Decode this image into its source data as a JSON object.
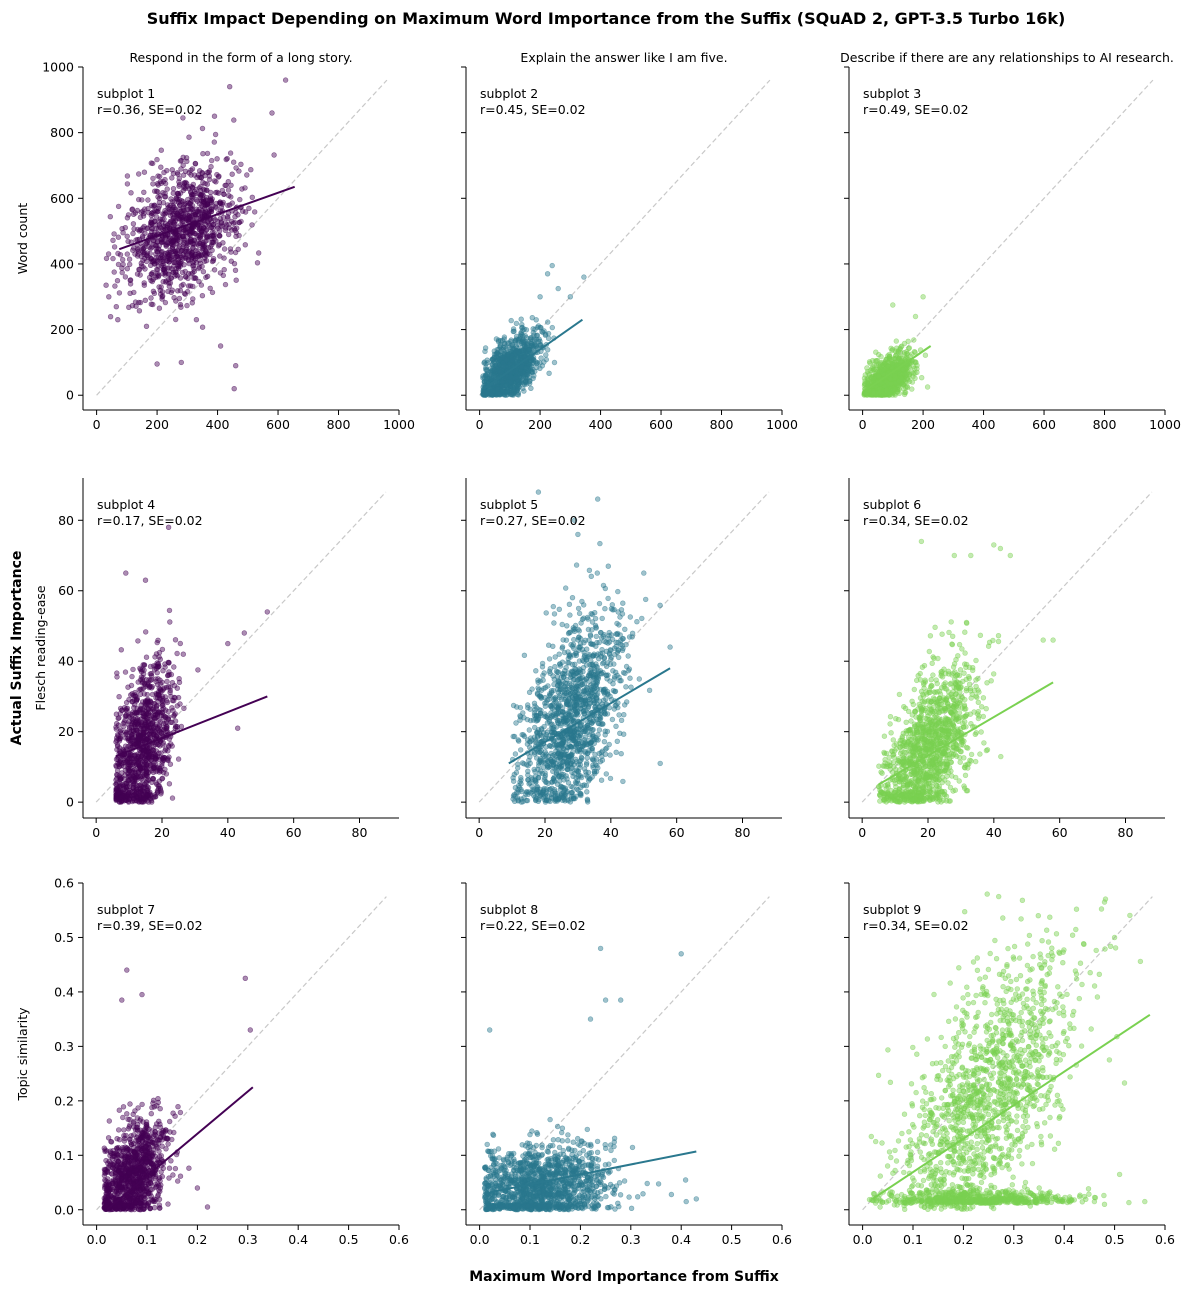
{
  "figure": {
    "title": "Suffix Impact Depending on Maximum Word Importance from the Suffix (SQuAD 2, GPT-3.5 Turbo 16k)",
    "xlabel": "Maximum Word Importance from Suffix",
    "ylabel": "Actual Suffix Importance"
  },
  "colors": {
    "c1": "#440154",
    "c2": "#2a788e",
    "c3": "#7ad151",
    "diag": "#c8c8c8",
    "axis": "#000000"
  },
  "chart_data": [
    {
      "type": "scatter",
      "title": "Respond in the form of a long story.",
      "ylabel": "Word count",
      "label": "subplot 1",
      "stat": "r=0.36, SE=0.02",
      "xlim": [
        -45,
        1000
      ],
      "ylim": [
        -45,
        1000
      ],
      "xticks": [
        0,
        200,
        400,
        600,
        800,
        1000
      ],
      "xtick_labels": [
        "0",
        "200",
        "400",
        "600",
        "800",
        "1000"
      ],
      "yticks": [
        0,
        200,
        400,
        600,
        800,
        1000
      ],
      "ytick_labels": [
        "0",
        "200",
        "400",
        "600",
        "800",
        "1000"
      ],
      "diag": [
        0,
        960
      ],
      "fit": [
        [
          75,
          445
        ],
        [
          655,
          635
        ]
      ],
      "cloud": {
        "n": 1100,
        "mx": 285,
        "sx": 95,
        "my": 500,
        "sy": 100,
        "slope": 0.33,
        "ymin": 20,
        "xmin": 30
      },
      "outliers": [
        [
          625,
          960
        ],
        [
          440,
          940
        ],
        [
          390,
          850
        ],
        [
          580,
          860
        ],
        [
          200,
          95
        ],
        [
          280,
          100
        ],
        [
          460,
          90
        ],
        [
          455,
          20
        ],
        [
          330,
          230
        ],
        [
          410,
          150
        ],
        [
          165,
          210
        ],
        [
          70,
          230
        ]
      ],
      "series_color": "c1"
    },
    {
      "type": "scatter",
      "title": "Explain the answer like I am five.",
      "ylabel": "",
      "label": "subplot 2",
      "stat": "r=0.45, SE=0.02",
      "xlim": [
        -45,
        1000
      ],
      "ylim": [
        -45,
        1000
      ],
      "xticks": [
        0,
        200,
        400,
        600,
        800,
        1000
      ],
      "xtick_labels": [
        "0",
        "200",
        "400",
        "600",
        "800",
        "1000"
      ],
      "yticks": [
        0,
        200,
        400,
        600,
        800,
        1000
      ],
      "ytick_labels": [
        "0",
        "200",
        "400",
        "600",
        "800",
        "1000"
      ],
      "diag": [
        0,
        960
      ],
      "fit": [
        [
          15,
          20
        ],
        [
          340,
          230
        ]
      ],
      "cloud": {
        "n": 1100,
        "mx": 100,
        "sx": 50,
        "my": 75,
        "sy": 55,
        "slope": 0.55,
        "ymin": 0,
        "xmin": 10
      },
      "outliers": [
        [
          345,
          360
        ],
        [
          240,
          395
        ],
        [
          225,
          370
        ],
        [
          260,
          325
        ],
        [
          300,
          300
        ],
        [
          200,
          300
        ]
      ],
      "series_color": "c2"
    },
    {
      "type": "scatter",
      "title": "Describe if there are any relationships to AI research.",
      "ylabel": "",
      "label": "subplot 3",
      "stat": "r=0.49, SE=0.02",
      "xlim": [
        -45,
        1000
      ],
      "ylim": [
        -45,
        1000
      ],
      "xticks": [
        0,
        200,
        400,
        600,
        800,
        1000
      ],
      "xtick_labels": [
        "0",
        "200",
        "400",
        "600",
        "800",
        "1000"
      ],
      "yticks": [
        0,
        200,
        400,
        600,
        800,
        1000
      ],
      "ytick_labels": [
        "0",
        "200",
        "400",
        "600",
        "800",
        "1000"
      ],
      "diag": [
        0,
        960
      ],
      "fit": [
        [
          10,
          15
        ],
        [
          225,
          150
        ]
      ],
      "cloud": {
        "n": 1000,
        "mx": 80,
        "sx": 40,
        "my": 45,
        "sy": 40,
        "slope": 0.55,
        "ymin": 0,
        "xmin": 5
      },
      "outliers": [
        [
          200,
          300
        ],
        [
          100,
          275
        ],
        [
          175,
          240
        ],
        [
          215,
          25
        ]
      ],
      "series_color": "c3"
    },
    {
      "type": "scatter",
      "title": "",
      "ylabel": "Flesch reading-ease",
      "label": "subplot 4",
      "stat": "r=0.17, SE=0.02",
      "xlim": [
        -4,
        92
      ],
      "ylim": [
        -4.5,
        92
      ],
      "xticks": [
        0,
        20,
        40,
        60,
        80
      ],
      "xtick_labels": [
        "0",
        "20",
        "40",
        "60",
        "80"
      ],
      "yticks": [
        0,
        20,
        40,
        60,
        80
      ],
      "ytick_labels": [
        "0",
        "20",
        "40",
        "60",
        "80"
      ],
      "diag": [
        0,
        88
      ],
      "fit": [
        [
          6,
          13
        ],
        [
          52,
          30
        ]
      ],
      "cloud": {
        "n": 1100,
        "mx": 14,
        "sx": 5,
        "my": 16,
        "sy": 12,
        "slope": 0.4,
        "ymin": 0,
        "xmin": 6
      },
      "outliers": [
        [
          52,
          54
        ],
        [
          22,
          78
        ],
        [
          45,
          48
        ],
        [
          40,
          45
        ],
        [
          43,
          21
        ],
        [
          9,
          65
        ],
        [
          15,
          63
        ]
      ],
      "series_color": "c1"
    },
    {
      "type": "scatter",
      "title": "",
      "ylabel": "",
      "label": "subplot 5",
      "stat": "r=0.27, SE=0.02",
      "xlim": [
        -4,
        92
      ],
      "ylim": [
        -4.5,
        92
      ],
      "xticks": [
        0,
        20,
        40,
        60,
        80
      ],
      "xtick_labels": [
        "0",
        "20",
        "40",
        "60",
        "80"
      ],
      "yticks": [
        0,
        20,
        40,
        60,
        80
      ],
      "ytick_labels": [
        "0",
        "20",
        "40",
        "60",
        "80"
      ],
      "diag": [
        0,
        88
      ],
      "fit": [
        [
          9,
          11
        ],
        [
          58,
          38
        ]
      ],
      "cloud": {
        "n": 1400,
        "mx": 28,
        "sx": 8,
        "my": 23,
        "sy": 15,
        "slope": 0.5,
        "ymin": 0,
        "xmin": 10
      },
      "outliers": [
        [
          18,
          88
        ],
        [
          36,
          86
        ],
        [
          29,
          80
        ],
        [
          30,
          76
        ],
        [
          58,
          44
        ],
        [
          55,
          11
        ],
        [
          50,
          65
        ]
      ],
      "series_color": "c2"
    },
    {
      "type": "scatter",
      "title": "",
      "ylabel": "",
      "label": "subplot 6",
      "stat": "r=0.34, SE=0.02",
      "xlim": [
        -4,
        92
      ],
      "ylim": [
        -4.5,
        92
      ],
      "xticks": [
        0,
        20,
        40,
        60,
        80
      ],
      "xtick_labels": [
        "0",
        "20",
        "40",
        "60",
        "80"
      ],
      "yticks": [
        0,
        20,
        40,
        60,
        80
      ],
      "ytick_labels": [
        "0",
        "20",
        "40",
        "60",
        "80"
      ],
      "diag": [
        0,
        88
      ],
      "fit": [
        [
          5,
          5
        ],
        [
          58,
          34
        ]
      ],
      "cloud": {
        "n": 1300,
        "mx": 20,
        "sx": 7,
        "my": 14,
        "sy": 12,
        "slope": 0.55,
        "ymin": 0,
        "xmin": 5
      },
      "outliers": [
        [
          18,
          74
        ],
        [
          40,
          73
        ],
        [
          33,
          70
        ],
        [
          28,
          70
        ],
        [
          42,
          72
        ],
        [
          45,
          70
        ],
        [
          58,
          46
        ],
        [
          55,
          46
        ]
      ],
      "series_color": "c3"
    },
    {
      "type": "scatter",
      "title": "",
      "ylabel": "Topic similarity",
      "label": "subplot 7",
      "stat": "r=0.39, SE=0.02",
      "xlim": [
        -0.027,
        0.6
      ],
      "ylim": [
        -0.028,
        0.6
      ],
      "xticks": [
        0,
        0.1,
        0.2,
        0.3,
        0.4,
        0.5,
        0.6
      ],
      "xtick_labels": [
        "0.0",
        "0.1",
        "0.2",
        "0.3",
        "0.4",
        "0.5",
        "0.6"
      ],
      "yticks": [
        0,
        0.1,
        0.2,
        0.3,
        0.4,
        0.5,
        0.6
      ],
      "ytick_labels": [
        "0.0",
        "0.1",
        "0.2",
        "0.3",
        "0.4",
        "0.5",
        "0.6"
      ],
      "diag": [
        0,
        0.575
      ],
      "fit": [
        [
          0.02,
          0.0
        ],
        [
          0.31,
          0.225
        ]
      ],
      "cloud": {
        "n": 1100,
        "mx": 0.07,
        "sx": 0.035,
        "my": 0.06,
        "sy": 0.055,
        "slope": 0.5,
        "ymin": 0,
        "xmin": 0.015
      },
      "outliers": [
        [
          0.06,
          0.44
        ],
        [
          0.05,
          0.385
        ],
        [
          0.09,
          0.395
        ],
        [
          0.295,
          0.425
        ],
        [
          0.305,
          0.33
        ],
        [
          0.22,
          0.005
        ],
        [
          0.2,
          0.04
        ]
      ],
      "series_color": "c1"
    },
    {
      "type": "scatter",
      "title": "",
      "ylabel": "",
      "label": "subplot 8",
      "stat": "r=0.22, SE=0.02",
      "xlim": [
        -0.027,
        0.6
      ],
      "ylim": [
        -0.028,
        0.6
      ],
      "xticks": [
        0,
        0.1,
        0.2,
        0.3,
        0.4,
        0.5,
        0.6
      ],
      "xtick_labels": [
        "0.0",
        "0.1",
        "0.2",
        "0.3",
        "0.4",
        "0.5",
        "0.6"
      ],
      "yticks": [
        0,
        0.1,
        0.2,
        0.3,
        0.4,
        0.5,
        0.6
      ],
      "ytick_labels": [
        "0.0",
        "0.1",
        "0.2",
        "0.3",
        "0.4",
        "0.5",
        "0.6"
      ],
      "diag": [
        0,
        0.575
      ],
      "fit": [
        [
          0.01,
          0.03
        ],
        [
          0.43,
          0.107
        ]
      ],
      "cloud": {
        "n": 1400,
        "mx": 0.12,
        "sx": 0.07,
        "my": 0.04,
        "sy": 0.04,
        "slope": 0.18,
        "ymin": 0,
        "xmin": 0.01
      },
      "outliers": [
        [
          0.24,
          0.48
        ],
        [
          0.4,
          0.47
        ],
        [
          0.28,
          0.385
        ],
        [
          0.25,
          0.385
        ],
        [
          0.22,
          0.35
        ],
        [
          0.02,
          0.33
        ],
        [
          0.43,
          0.02
        ],
        [
          0.41,
          0.015
        ]
      ],
      "series_color": "c2"
    },
    {
      "type": "scatter",
      "title": "",
      "ylabel": "",
      "label": "subplot 9",
      "stat": "r=0.34, SE=0.02",
      "xlim": [
        -0.027,
        0.6
      ],
      "ylim": [
        -0.028,
        0.6
      ],
      "xticks": [
        0,
        0.1,
        0.2,
        0.3,
        0.4,
        0.5,
        0.6
      ],
      "xtick_labels": [
        "0.0",
        "0.1",
        "0.2",
        "0.3",
        "0.4",
        "0.5",
        "0.6"
      ],
      "yticks": [
        0,
        0.1,
        0.2,
        0.3,
        0.4,
        0.5,
        0.6
      ],
      "ytick_labels": [
        "0.0",
        "0.1",
        "0.2",
        "0.3",
        "0.4",
        "0.5",
        "0.6"
      ],
      "diag": [
        0,
        0.575
      ],
      "fit": [
        [
          0.02,
          0.02
        ],
        [
          0.57,
          0.358
        ]
      ],
      "cloud": {
        "n": 1400,
        "mx": 0.24,
        "sx": 0.085,
        "my": 0.2,
        "sy": 0.13,
        "slope": 0.6,
        "ymin": 0,
        "xmin": 0.01
      },
      "cloud2": {
        "n": 500,
        "mx": 0.24,
        "sx": 0.09,
        "my": 0.012,
        "sy": 0.01
      },
      "outliers": [
        [
          0.27,
          0.575
        ],
        [
          0.48,
          0.565
        ],
        [
          0.56,
          0.015
        ],
        [
          0.51,
          0.065
        ],
        [
          0.46,
          0.015
        ],
        [
          0.48,
          0.01
        ],
        [
          0.5,
          0.5
        ]
      ],
      "series_color": "c3"
    }
  ]
}
